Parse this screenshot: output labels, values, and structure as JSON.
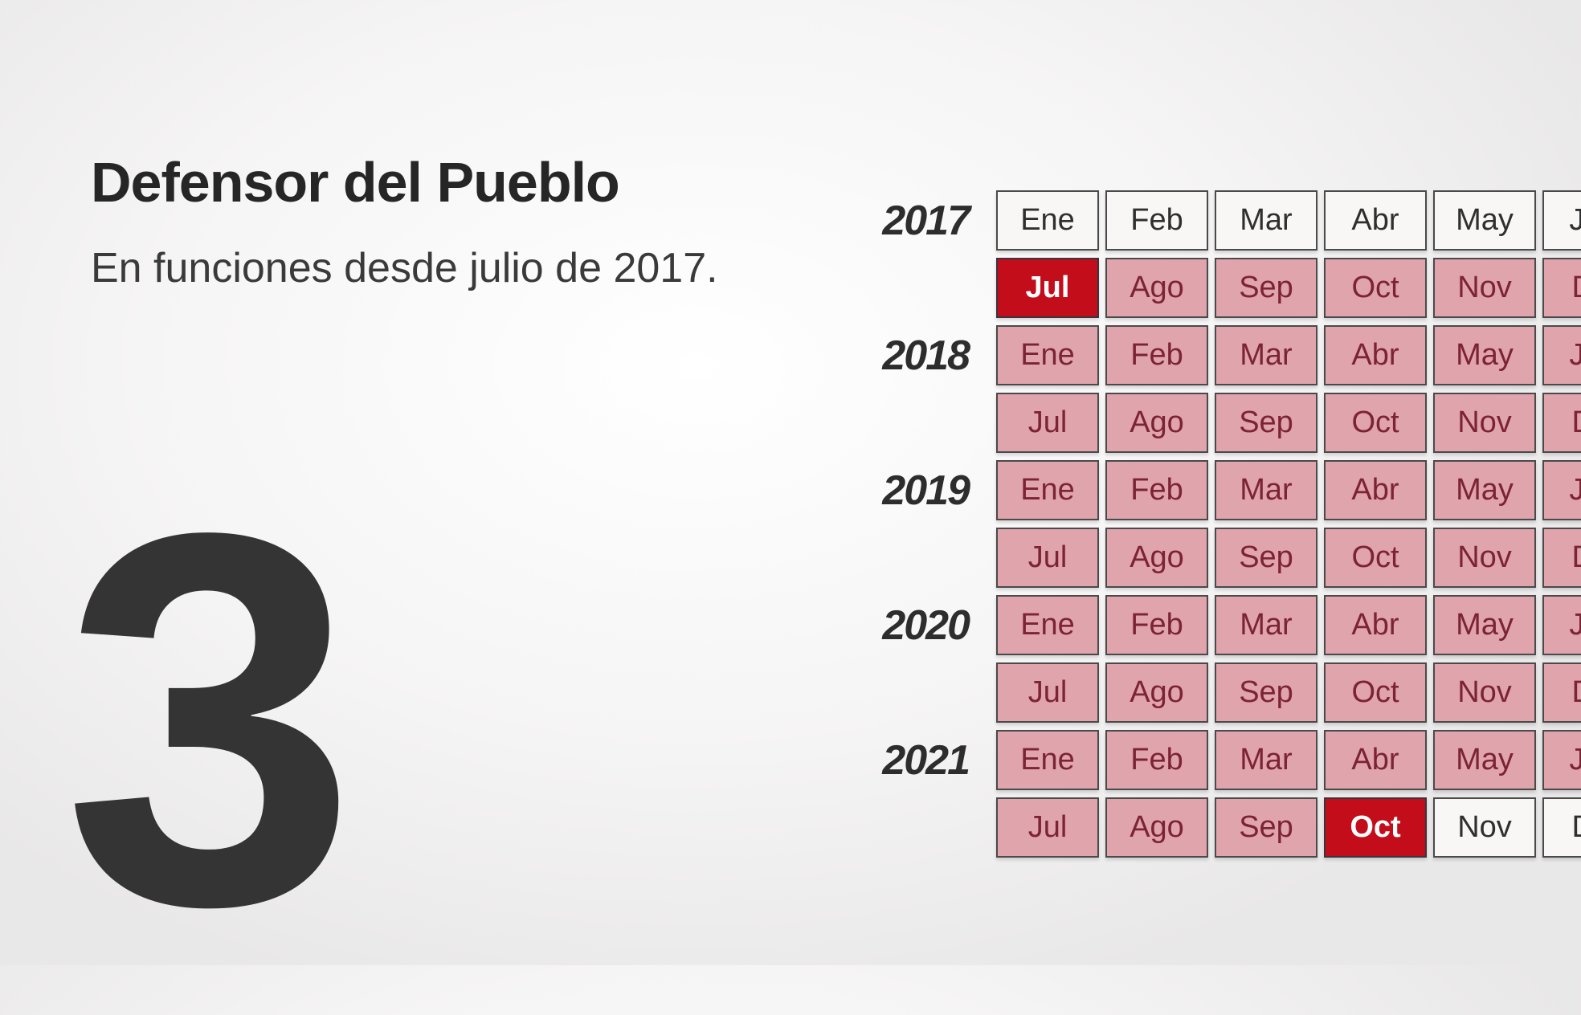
{
  "panel": {
    "title": "Defensor del Pueblo",
    "subtitle": "En funciones desde julio de 2017.",
    "big_number": "3"
  },
  "colors": {
    "background_edge": "#e9e8e8",
    "background_center": "#ffffff",
    "cell_border": "#4a4a4a",
    "cell_empty_bg": "#f8f7f6",
    "cell_empty_text": "#2f2f2f",
    "cell_active_bg": "#e0a4ad",
    "cell_active_text": "#7c2334",
    "cell_highlight_bg": "#c30d1b",
    "cell_highlight_text": "#ffffff",
    "title_text": "#262626",
    "big_number_text": "#343434"
  },
  "calendar": {
    "years": [
      {
        "year": "2017",
        "halves": [
          {
            "months": [
              {
                "label": "Ene",
                "state": "empty"
              },
              {
                "label": "Feb",
                "state": "empty"
              },
              {
                "label": "Mar",
                "state": "empty"
              },
              {
                "label": "Abr",
                "state": "empty"
              },
              {
                "label": "May",
                "state": "empty"
              },
              {
                "label": "Jun",
                "state": "empty"
              }
            ]
          },
          {
            "months": [
              {
                "label": "Jul",
                "state": "highlight"
              },
              {
                "label": "Ago",
                "state": "active"
              },
              {
                "label": "Sep",
                "state": "active"
              },
              {
                "label": "Oct",
                "state": "active"
              },
              {
                "label": "Nov",
                "state": "active"
              },
              {
                "label": "Dic",
                "state": "active"
              }
            ]
          }
        ]
      },
      {
        "year": "2018",
        "halves": [
          {
            "months": [
              {
                "label": "Ene",
                "state": "active"
              },
              {
                "label": "Feb",
                "state": "active"
              },
              {
                "label": "Mar",
                "state": "active"
              },
              {
                "label": "Abr",
                "state": "active"
              },
              {
                "label": "May",
                "state": "active"
              },
              {
                "label": "Jun",
                "state": "active"
              }
            ]
          },
          {
            "months": [
              {
                "label": "Jul",
                "state": "active"
              },
              {
                "label": "Ago",
                "state": "active"
              },
              {
                "label": "Sep",
                "state": "active"
              },
              {
                "label": "Oct",
                "state": "active"
              },
              {
                "label": "Nov",
                "state": "active"
              },
              {
                "label": "Dic",
                "state": "active"
              }
            ]
          }
        ]
      },
      {
        "year": "2019",
        "halves": [
          {
            "months": [
              {
                "label": "Ene",
                "state": "active"
              },
              {
                "label": "Feb",
                "state": "active"
              },
              {
                "label": "Mar",
                "state": "active"
              },
              {
                "label": "Abr",
                "state": "active"
              },
              {
                "label": "May",
                "state": "active"
              },
              {
                "label": "Jun",
                "state": "active"
              }
            ]
          },
          {
            "months": [
              {
                "label": "Jul",
                "state": "active"
              },
              {
                "label": "Ago",
                "state": "active"
              },
              {
                "label": "Sep",
                "state": "active"
              },
              {
                "label": "Oct",
                "state": "active"
              },
              {
                "label": "Nov",
                "state": "active"
              },
              {
                "label": "Dic",
                "state": "active"
              }
            ]
          }
        ]
      },
      {
        "year": "2020",
        "halves": [
          {
            "months": [
              {
                "label": "Ene",
                "state": "active"
              },
              {
                "label": "Feb",
                "state": "active"
              },
              {
                "label": "Mar",
                "state": "active"
              },
              {
                "label": "Abr",
                "state": "active"
              },
              {
                "label": "May",
                "state": "active"
              },
              {
                "label": "Jun",
                "state": "active"
              }
            ]
          },
          {
            "months": [
              {
                "label": "Jul",
                "state": "active"
              },
              {
                "label": "Ago",
                "state": "active"
              },
              {
                "label": "Sep",
                "state": "active"
              },
              {
                "label": "Oct",
                "state": "active"
              },
              {
                "label": "Nov",
                "state": "active"
              },
              {
                "label": "Dic",
                "state": "active"
              }
            ]
          }
        ]
      },
      {
        "year": "2021",
        "halves": [
          {
            "months": [
              {
                "label": "Ene",
                "state": "active"
              },
              {
                "label": "Feb",
                "state": "active"
              },
              {
                "label": "Mar",
                "state": "active"
              },
              {
                "label": "Abr",
                "state": "active"
              },
              {
                "label": "May",
                "state": "active"
              },
              {
                "label": "Jun",
                "state": "active"
              }
            ]
          },
          {
            "months": [
              {
                "label": "Jul",
                "state": "active"
              },
              {
                "label": "Ago",
                "state": "active"
              },
              {
                "label": "Sep",
                "state": "active"
              },
              {
                "label": "Oct",
                "state": "highlight"
              },
              {
                "label": "Nov",
                "state": "empty"
              },
              {
                "label": "Dic",
                "state": "empty"
              }
            ]
          }
        ]
      }
    ]
  },
  "chart_data": {
    "type": "heatmap",
    "title": "Defensor del Pueblo",
    "subtitle": "En funciones desde julio de 2017.",
    "big_number": "3",
    "rows": [
      "2017",
      "2018",
      "2019",
      "2020",
      "2021"
    ],
    "columns": [
      "Ene",
      "Feb",
      "Mar",
      "Abr",
      "May",
      "Jun",
      "Jul",
      "Ago",
      "Sep",
      "Oct",
      "Nov",
      "Dic"
    ],
    "cell_states": [
      [
        "empty",
        "empty",
        "empty",
        "empty",
        "empty",
        "empty",
        "highlight",
        "active",
        "active",
        "active",
        "active",
        "active"
      ],
      [
        "active",
        "active",
        "active",
        "active",
        "active",
        "active",
        "active",
        "active",
        "active",
        "active",
        "active",
        "active"
      ],
      [
        "active",
        "active",
        "active",
        "active",
        "active",
        "active",
        "active",
        "active",
        "active",
        "active",
        "active",
        "active"
      ],
      [
        "active",
        "active",
        "active",
        "active",
        "active",
        "active",
        "active",
        "active",
        "active",
        "active",
        "active",
        "active"
      ],
      [
        "active",
        "active",
        "active",
        "active",
        "active",
        "active",
        "active",
        "active",
        "active",
        "highlight",
        "empty",
        "empty"
      ]
    ],
    "highlighted_cells": [
      {
        "year": "2017",
        "month": "Jul"
      },
      {
        "year": "2021",
        "month": "Oct"
      }
    ],
    "layout_hints": {
      "rows_per_year": 2,
      "months_per_row": 6,
      "last_column_clipped_at_right_edge": true,
      "legend": "none",
      "grid": "bordered cells"
    }
  }
}
